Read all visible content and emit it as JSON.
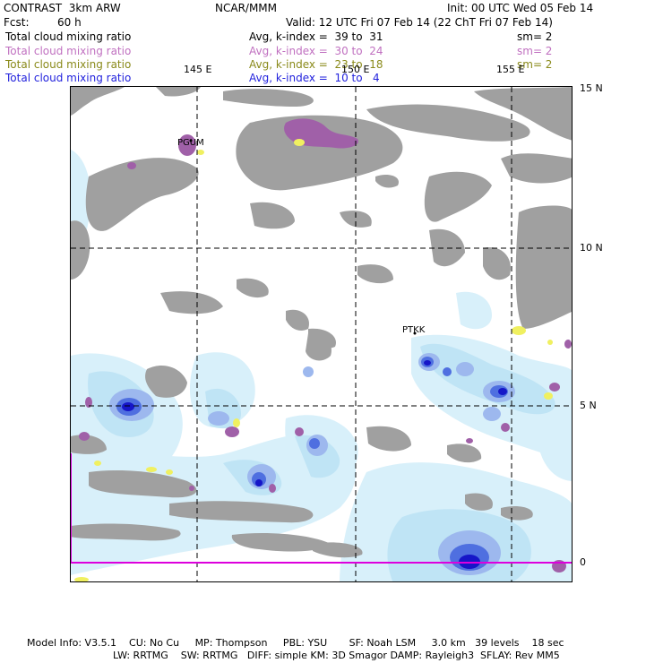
{
  "header": {
    "model": "CONTRAST  3km ARW",
    "org": "NCAR/MMM",
    "init": "Init: 00 UTC Wed 05 Feb 14",
    "fcst_label": "Fcst:",
    "fcst_value": "60 h",
    "valid": "Valid: 12 UTC Fri 07 Feb 14 (22 ChT Fri 07 Feb 14)"
  },
  "legend": [
    {
      "field": "Total cloud mixing ratio",
      "range": "Avg, k-index =  39 to  31",
      "smooth": "sm= 2",
      "color": "#000000"
    },
    {
      "field": "Total cloud mixing ratio",
      "range": "Avg, k-index =  30 to  24",
      "smooth": "sm= 2",
      "color": "#c070c0"
    },
    {
      "field": "Total cloud mixing ratio",
      "range": "Avg, k-index =  23 to  18",
      "smooth": "sm= 2",
      "color": "#8a8a1a"
    },
    {
      "field": "Total cloud mixing ratio",
      "range": "Avg, k-index =  10 to   4",
      "smooth": "",
      "color": "#2222dd"
    }
  ],
  "map": {
    "lon_labels": [
      "145 E",
      "150 E",
      "155 E"
    ],
    "lat_labels": [
      "15 N",
      "10 N",
      "5 N",
      "0"
    ],
    "stations": [
      "PGUM",
      "PTKK"
    ],
    "colors": {
      "cloud_gray": "#a0a0a0",
      "cyan_light": "#d8f0fa",
      "cyan_mid": "#bfe4f5",
      "blue_light": "#9db8ee",
      "blue_mid": "#4f6fe0",
      "blue_dark": "#1616c8",
      "purple": "#a060a8",
      "yellow": "#f0f060",
      "boundary": "#dd00dd"
    }
  },
  "footer": {
    "line1": "Model Info: V3.5.1    CU: No Cu     MP: Thompson     PBL: YSU       SF: Noah LSM     3.0 km   39 levels    18 sec",
    "line2": "LW: RRTMG    SW: RRTMG   DIFF: simple KM: 3D Smagor DAMP: Rayleigh3  SFLAY: Rev MM5"
  }
}
